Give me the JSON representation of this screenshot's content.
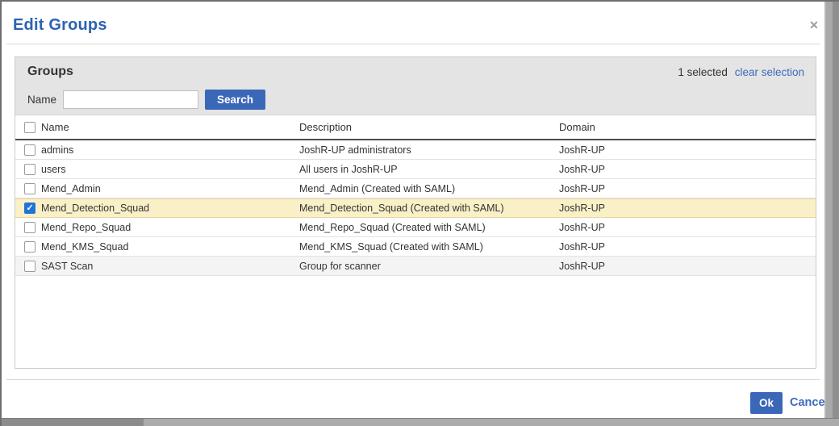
{
  "modal": {
    "title": "Edit Groups",
    "close_icon": "✕"
  },
  "panel": {
    "title": "Groups",
    "selection_count": "1 selected",
    "clear_selection_label": "clear selection",
    "search": {
      "name_label": "Name",
      "input_value": "",
      "button_label": "Search"
    }
  },
  "table": {
    "columns": [
      "Name",
      "Description",
      "Domain"
    ],
    "rows": [
      {
        "name": "admins",
        "description": "JoshR-UP administrators",
        "domain": "JoshR-UP",
        "checked": false,
        "highlighted": false,
        "shaded": false
      },
      {
        "name": "users",
        "description": "All users in JoshR-UP",
        "domain": "JoshR-UP",
        "checked": false,
        "highlighted": false,
        "shaded": false
      },
      {
        "name": "Mend_Admin",
        "description": "Mend_Admin (Created with SAML)",
        "domain": "JoshR-UP",
        "checked": false,
        "highlighted": false,
        "shaded": false
      },
      {
        "name": "Mend_Detection_Squad",
        "description": "Mend_Detection_Squad (Created with SAML)",
        "domain": "JoshR-UP",
        "checked": true,
        "highlighted": true,
        "shaded": false
      },
      {
        "name": "Mend_Repo_Squad",
        "description": "Mend_Repo_Squad (Created with SAML)",
        "domain": "JoshR-UP",
        "checked": false,
        "highlighted": false,
        "shaded": false
      },
      {
        "name": "Mend_KMS_Squad",
        "description": "Mend_KMS_Squad (Created with SAML)",
        "domain": "JoshR-UP",
        "checked": false,
        "highlighted": false,
        "shaded": false
      },
      {
        "name": "SAST Scan",
        "description": "Group for scanner",
        "domain": "JoshR-UP",
        "checked": false,
        "highlighted": false,
        "shaded": true
      }
    ]
  },
  "footer": {
    "ok_label": "Ok",
    "cancel_label": "Cancel"
  },
  "colors": {
    "title_blue": "#2d62b4",
    "button_blue": "#3a67b8",
    "link_blue": "#3c6bbf",
    "checkbox_blue": "#2273d8",
    "selected_row_bg": "#faf0c8"
  }
}
